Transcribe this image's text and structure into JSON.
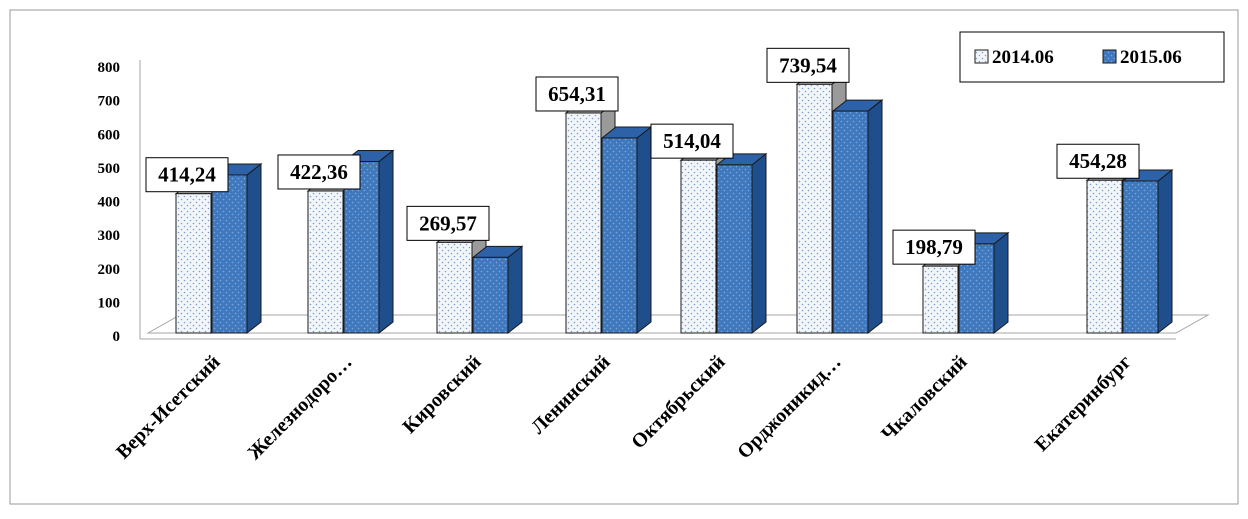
{
  "chart_data": {
    "type": "bar",
    "title": "",
    "xlabel": "",
    "ylabel": "",
    "ylim": [
      0,
      800
    ],
    "yticks": [
      0,
      100,
      200,
      300,
      400,
      500,
      600,
      700,
      800
    ],
    "grid": false,
    "legend_position": "top-right",
    "categories": [
      "Верх-Исетский",
      "Железнодоро…",
      "Кировский",
      "Ленинский",
      "Октябрьский",
      "Орджоникид…",
      "Чкаловский",
      "Екатеринбург"
    ],
    "series": [
      {
        "name": "2014.06",
        "values": [
          414.24,
          422.36,
          269.57,
          654.31,
          514.04,
          739.54,
          198.79,
          454.28
        ],
        "data_labels": [
          "414,24",
          "422,36",
          "269,57",
          "654,31",
          "514,04",
          "739,54",
          "198,79",
          "454,28"
        ],
        "face_color": "#f2f6fb",
        "dot_color": "#7f9fcb",
        "side_color": "#9a9a9a",
        "top_color": "#b0b0b0"
      },
      {
        "name": "2015.06",
        "values": [
          470,
          510,
          225,
          580,
          500,
          660,
          265,
          452
        ],
        "face_color": "#3f78bd",
        "dot_color": "#7ea8dd",
        "side_color": "#1f4e8c",
        "top_color": "#2d62a8"
      }
    ]
  }
}
